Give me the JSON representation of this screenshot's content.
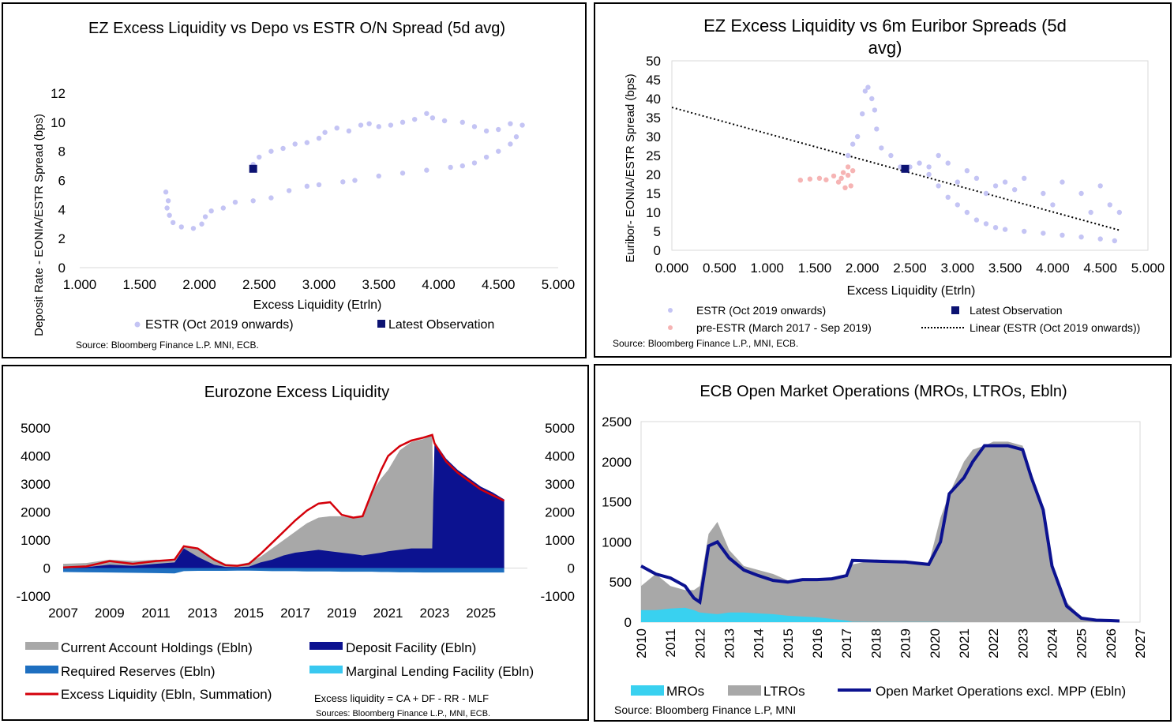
{
  "chart_data": [
    {
      "id": "p1",
      "type": "scatter",
      "title": "EZ Excess Liquidity vs Depo vs ESTR O/N Spread (5d avg)",
      "xlabel": "Excess Liquidity (Etrln)",
      "ylabel": "Deposit Rate - EONIA/ESTR  Spread (bps)",
      "xlim": [
        1.0,
        5.0
      ],
      "ylim": [
        0,
        12
      ],
      "xticks": [
        "1.000",
        "1.500",
        "2.000",
        "2.500",
        "3.000",
        "3.500",
        "4.000",
        "4.500",
        "5.000"
      ],
      "yticks": [
        "0",
        "2",
        "4",
        "6",
        "8",
        "10",
        "12"
      ],
      "series": [
        {
          "name": "ESTR (Oct 2019 onwards)",
          "color": "#c4c4f4",
          "points": [
            [
              1.72,
              5.2
            ],
            [
              1.74,
              4.6
            ],
            [
              1.73,
              4.1
            ],
            [
              1.75,
              3.6
            ],
            [
              1.78,
              3.1
            ],
            [
              1.85,
              2.8
            ],
            [
              1.95,
              2.7
            ],
            [
              2.02,
              3.0
            ],
            [
              2.05,
              3.5
            ],
            [
              2.1,
              3.9
            ],
            [
              2.2,
              4.1
            ],
            [
              2.3,
              4.5
            ],
            [
              2.45,
              4.6
            ],
            [
              2.6,
              4.8
            ],
            [
              2.75,
              5.3
            ],
            [
              2.9,
              5.6
            ],
            [
              3.0,
              5.7
            ],
            [
              3.2,
              5.9
            ],
            [
              3.3,
              6.0
            ],
            [
              3.5,
              6.3
            ],
            [
              3.7,
              6.5
            ],
            [
              3.9,
              6.7
            ],
            [
              4.1,
              6.9
            ],
            [
              4.2,
              7.0
            ],
            [
              4.3,
              7.2
            ],
            [
              4.4,
              7.6
            ],
            [
              4.5,
              8.0
            ],
            [
              4.6,
              8.5
            ],
            [
              4.65,
              9.0
            ],
            [
              4.7,
              9.8
            ],
            [
              4.6,
              9.9
            ],
            [
              4.5,
              9.5
            ],
            [
              4.4,
              9.4
            ],
            [
              4.3,
              9.7
            ],
            [
              4.2,
              10.0
            ],
            [
              4.05,
              10.1
            ],
            [
              3.95,
              10.3
            ],
            [
              3.9,
              10.6
            ],
            [
              3.8,
              10.2
            ],
            [
              3.7,
              10.0
            ],
            [
              3.6,
              9.8
            ],
            [
              3.5,
              9.7
            ],
            [
              3.42,
              9.9
            ],
            [
              3.35,
              9.8
            ],
            [
              3.25,
              9.4
            ],
            [
              3.15,
              9.6
            ],
            [
              3.05,
              9.3
            ],
            [
              3.0,
              8.9
            ],
            [
              2.9,
              8.6
            ],
            [
              2.8,
              8.5
            ],
            [
              2.7,
              8.2
            ],
            [
              2.6,
              8.0
            ],
            [
              2.5,
              7.6
            ],
            [
              2.45,
              7.1
            ]
          ]
        },
        {
          "name": "Latest Observation",
          "color": "#0c1272",
          "points": [
            [
              2.45,
              6.8
            ]
          ]
        }
      ],
      "legend": [
        "ESTR (Oct 2019 onwards)",
        "Latest Observation"
      ],
      "source": "Source: Bloomberg Finance L.P. MNI, ECB."
    },
    {
      "id": "p2",
      "type": "scatter",
      "title": "EZ Excess Liquidity vs 6m Euribor Spreads (5d",
      "title2": "avg)",
      "xlabel": "Excess Liquidity (Etrln)",
      "ylabel": "Euribor- EONIA/ESTR Spread (bps)",
      "xlim": [
        0,
        5.0
      ],
      "ylim": [
        0,
        50
      ],
      "xticks": [
        "0.000",
        "0.500",
        "1.000",
        "1.500",
        "2.000",
        "2.500",
        "3.000",
        "3.500",
        "4.000",
        "4.500",
        "5.000"
      ],
      "yticks": [
        "0",
        "5",
        "10",
        "15",
        "20",
        "25",
        "30",
        "35",
        "40",
        "45",
        "50"
      ],
      "series": [
        {
          "name": "ESTR (Oct 2019 onwards)",
          "color": "#c4c4f4",
          "points": [
            [
              1.85,
              25
            ],
            [
              1.9,
              28
            ],
            [
              1.95,
              30
            ],
            [
              2.0,
              36
            ],
            [
              2.03,
              42
            ],
            [
              2.06,
              43
            ],
            [
              2.1,
              40
            ],
            [
              2.13,
              37
            ],
            [
              2.15,
              32
            ],
            [
              2.2,
              27
            ],
            [
              2.3,
              25
            ],
            [
              2.4,
              22
            ],
            [
              2.5,
              22
            ],
            [
              2.6,
              23
            ],
            [
              2.7,
              20
            ],
            [
              2.8,
              17
            ],
            [
              2.9,
              14
            ],
            [
              3.0,
              12
            ],
            [
              3.1,
              10
            ],
            [
              3.2,
              8
            ],
            [
              3.3,
              7
            ],
            [
              3.4,
              6
            ],
            [
              3.5,
              5.5
            ],
            [
              3.7,
              5
            ],
            [
              3.9,
              4.5
            ],
            [
              4.1,
              4
            ],
            [
              4.3,
              3.5
            ],
            [
              4.5,
              3
            ],
            [
              4.65,
              2.5
            ],
            [
              4.7,
              10
            ],
            [
              4.6,
              12
            ],
            [
              4.5,
              17
            ],
            [
              4.4,
              10
            ],
            [
              4.3,
              15
            ],
            [
              4.1,
              18
            ],
            [
              4.0,
              12
            ],
            [
              3.9,
              15
            ],
            [
              3.7,
              19
            ],
            [
              3.6,
              16
            ],
            [
              3.5,
              18
            ],
            [
              3.4,
              17
            ],
            [
              3.3,
              15
            ],
            [
              3.2,
              19
            ],
            [
              3.1,
              21
            ],
            [
              3.0,
              18
            ],
            [
              2.9,
              23
            ],
            [
              2.8,
              25
            ],
            [
              2.7,
              22
            ]
          ]
        },
        {
          "name": "pre-ESTR (March 2017 - Sep 2019)",
          "color": "#f6b4b4",
          "points": [
            [
              1.35,
              18.5
            ],
            [
              1.45,
              18.8
            ],
            [
              1.55,
              19
            ],
            [
              1.62,
              18.6
            ],
            [
              1.7,
              19.6
            ],
            [
              1.75,
              18.0
            ],
            [
              1.8,
              20.5
            ],
            [
              1.85,
              22
            ],
            [
              1.9,
              21
            ],
            [
              1.88,
              17
            ],
            [
              1.82,
              16.5
            ],
            [
              1.78,
              19
            ],
            [
              1.85,
              19.8
            ]
          ]
        },
        {
          "name": "Latest Observation",
          "color": "#0c1272",
          "points": [
            [
              2.45,
              21.5
            ]
          ]
        }
      ],
      "trendline": {
        "name": "Linear (ESTR (Oct 2019 onwards))",
        "from": [
          0,
          37.7
        ],
        "to": [
          4.7,
          5.3
        ]
      },
      "legend": [
        "ESTR (Oct 2019 onwards)",
        "Latest Observation",
        "pre-ESTR (March 2017 - Sep 2019)",
        "Linear (ESTR (Oct 2019 onwards))"
      ],
      "source": "Source: Bloomberg Finance L.P., MNI, ECB."
    },
    {
      "id": "p3",
      "type": "area",
      "title": "Eurozone Excess Liquidity",
      "xlim": [
        2007,
        2027
      ],
      "ylim": [
        -1000,
        5000
      ],
      "xticks": [
        "2007",
        "2009",
        "2011",
        "2013",
        "2015",
        "2017",
        "2019",
        "2021",
        "2023",
        "2025"
      ],
      "yticks": [
        "-1000",
        "0",
        "1000",
        "2000",
        "3000",
        "4000",
        "5000"
      ],
      "x": [
        2007,
        2008,
        2009,
        2010,
        2011,
        2011.8,
        2012.2,
        2012.8,
        2013.5,
        2014,
        2014.5,
        2015,
        2015.5,
        2016,
        2016.5,
        2017,
        2017.5,
        2018,
        2018.5,
        2019,
        2019.5,
        2019.9,
        2020.3,
        2020.7,
        2021,
        2021.5,
        2022,
        2022.5,
        2022.9,
        2023.0,
        2023.5,
        2024,
        2024.5,
        2025,
        2025.5,
        2026
      ],
      "series": [
        {
          "name": "Current Account Holdings (Ebln)",
          "color": "#a8a8a8",
          "values": [
            150,
            180,
            300,
            250,
            300,
            250,
            750,
            700,
            350,
            150,
            120,
            200,
            400,
            700,
            1000,
            1300,
            1600,
            1800,
            1850,
            1850,
            1800,
            1850,
            2700,
            3200,
            3500,
            4200,
            4500,
            4600,
            4750,
            150,
            120,
            110,
            100,
            90,
            80,
            70
          ]
        },
        {
          "name": "Deposit Facility (Ebln)",
          "color": "#0c1290",
          "values": [
            20,
            30,
            120,
            80,
            150,
            200,
            700,
            400,
            120,
            40,
            30,
            50,
            200,
            300,
            450,
            550,
            600,
            650,
            600,
            550,
            500,
            450,
            500,
            550,
            600,
            650,
            700,
            700,
            700,
            4500,
            3900,
            3500,
            3200,
            2900,
            2700,
            2450
          ]
        },
        {
          "name": "Required Reserves (Ebln)",
          "color": "#1e6fc0",
          "values": [
            -140,
            -150,
            -160,
            -170,
            -180,
            -190,
            -110,
            -100,
            -100,
            -100,
            -90,
            -90,
            -100,
            -110,
            -110,
            -110,
            -120,
            -120,
            -120,
            -130,
            -130,
            -130,
            -130,
            -140,
            -140,
            -150,
            -150,
            -160,
            -160,
            -160,
            -160,
            -160,
            -160,
            -160,
            -160,
            -160
          ]
        },
        {
          "name": "Marginal Lending Facility (Ebln)",
          "color": "#39c8f0",
          "values": [
            -5,
            -5,
            -5,
            -5,
            -5,
            -5,
            -5,
            -5,
            -5,
            -5,
            -5,
            -5,
            -5,
            -5,
            -5,
            -5,
            -5,
            -5,
            -5,
            -5,
            -5,
            -5,
            -5,
            -5,
            -5,
            -5,
            -5,
            -5,
            -5,
            -5,
            -5,
            -5,
            -5,
            -5,
            -5,
            -5
          ]
        },
        {
          "name": "Excess Liquidity (Ebln, Summation)",
          "color": "#d4000a",
          "values": [
            20,
            60,
            250,
            150,
            250,
            300,
            780,
            700,
            300,
            100,
            80,
            150,
            500,
            900,
            1300,
            1700,
            2050,
            2300,
            2350,
            1900,
            1800,
            1850,
            2700,
            3500,
            4000,
            4350,
            4550,
            4650,
            4750,
            4450,
            3800,
            3400,
            3100,
            2800,
            2600,
            2400
          ]
        }
      ],
      "legend": [
        "Current Account Holdings (Ebln)",
        "Deposit Facility (Ebln)",
        "Required Reserves (Ebln)",
        "Marginal Lending Facility (Ebln)",
        "Excess Liquidity (Ebln, Summation)"
      ],
      "note": "Excess liquidity = CA + DF - RR - MLF",
      "source": "Sources: Bloomberg Finance L.P., MNI, ECB."
    },
    {
      "id": "p4",
      "type": "area",
      "title": "ECB Open Market Operations (MROs, LTROs, Ebln)",
      "xlim": [
        2010,
        2027
      ],
      "ylim": [
        0,
        2500
      ],
      "xticks": [
        "2010",
        "2011",
        "2012",
        "2013",
        "2014",
        "2015",
        "2016",
        "2017",
        "2018",
        "2019",
        "2020",
        "2021",
        "2022",
        "2023",
        "2024",
        "2025",
        "2026",
        "2027"
      ],
      "yticks": [
        "0",
        "500",
        "1000",
        "1500",
        "2000",
        "2500"
      ],
      "x": [
        2010,
        2010.5,
        2011,
        2011.5,
        2011.8,
        2012.0,
        2012.3,
        2012.6,
        2013,
        2013.5,
        2014,
        2014.5,
        2015,
        2015.5,
        2016,
        2016.5,
        2017,
        2017.2,
        2018,
        2019,
        2019.8,
        2020.2,
        2020.5,
        2021,
        2021.3,
        2021.7,
        2022,
        2022.5,
        2023,
        2023.3,
        2023.7,
        2024,
        2024.5,
        2025,
        2025.5,
        2026.0,
        2026.3
      ],
      "series": [
        {
          "name": "MROs",
          "color": "#39d1f0",
          "values": [
            150,
            150,
            170,
            180,
            150,
            120,
            110,
            100,
            120,
            120,
            110,
            100,
            80,
            70,
            60,
            40,
            20,
            5,
            3,
            3,
            2,
            1,
            1,
            0,
            0,
            0,
            0,
            0,
            0,
            0,
            0,
            0,
            0,
            0,
            0,
            0,
            0
          ]
        },
        {
          "name": "LTROs",
          "color": "#a8a8a8",
          "values": [
            450,
            600,
            450,
            400,
            400,
            450,
            1100,
            1250,
            900,
            700,
            650,
            600,
            520,
            520,
            540,
            550,
            560,
            720,
            780,
            760,
            730,
            1300,
            1600,
            2000,
            2150,
            2200,
            2250,
            2250,
            2200,
            1800,
            1350,
            700,
            250,
            60,
            30,
            20,
            15
          ]
        },
        {
          "name": "Open Market Operations excl. MPP (Ebln)",
          "color": "#0c1290",
          "values": [
            700,
            600,
            550,
            450,
            300,
            250,
            950,
            1000,
            800,
            650,
            580,
            520,
            500,
            530,
            530,
            540,
            580,
            770,
            760,
            750,
            720,
            1000,
            1600,
            1800,
            2000,
            2200,
            2200,
            2200,
            2150,
            1800,
            1400,
            700,
            200,
            50,
            25,
            20,
            15
          ]
        }
      ],
      "legend": [
        "MROs",
        "LTROs",
        "Open Market Operations excl. MPP (Ebln)"
      ],
      "source": "Source: Bloomberg Finance L.P, MNI"
    }
  ]
}
